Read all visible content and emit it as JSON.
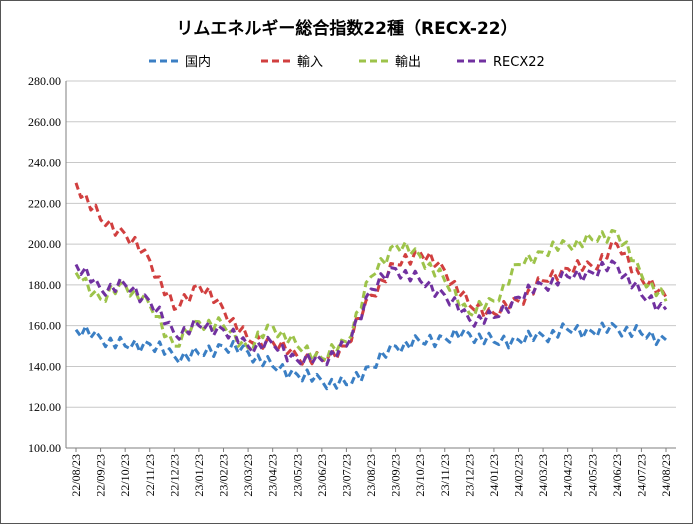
{
  "chart_data": {
    "type": "line",
    "title": "リムエネルギー総合指数22種（RECX-22）",
    "xlabel": "",
    "ylabel": "",
    "ylim": [
      100,
      280
    ],
    "yticks": [
      "100.00",
      "120.00",
      "140.00",
      "160.00",
      "180.00",
      "200.00",
      "220.00",
      "240.00",
      "260.00",
      "280.00"
    ],
    "x": [
      "22/08/23",
      "22/09/23",
      "22/10/23",
      "22/11/23",
      "22/12/23",
      "23/01/23",
      "23/02/23",
      "23/03/23",
      "23/04/23",
      "23/05/23",
      "23/06/23",
      "23/07/23",
      "23/08/23",
      "23/09/23",
      "23/10/23",
      "23/11/23",
      "23/12/23",
      "24/01/23",
      "24/02/23",
      "24/03/23",
      "24/04/23",
      "24/05/23",
      "24/06/23",
      "24/07/23",
      "24/08/23"
    ],
    "grid": true,
    "legend_position": "top",
    "series": [
      {
        "name": "国内",
        "color": "#3b7fc4",
        "values": [
          158,
          154,
          150,
          151,
          145,
          146,
          150,
          147,
          140,
          136,
          133,
          131,
          140,
          150,
          152,
          154,
          156,
          152,
          153,
          155,
          158,
          157,
          159,
          156,
          153
        ]
      },
      {
        "name": "輸入",
        "color": "#d13f3f",
        "values": [
          230,
          212,
          205,
          192,
          168,
          180,
          168,
          153,
          152,
          145,
          143,
          150,
          175,
          190,
          196,
          187,
          170,
          166,
          172,
          182,
          188,
          189,
          200,
          183,
          174
        ]
      },
      {
        "name": "輸出",
        "color": "#9dc34a",
        "values": [
          186,
          173,
          180,
          170,
          150,
          162,
          160,
          149,
          160,
          150,
          144,
          152,
          184,
          200,
          194,
          182,
          166,
          172,
          190,
          196,
          200,
          202,
          206,
          185,
          172
        ]
      },
      {
        "name": "RECX22",
        "color": "#7131a0",
        "values": [
          190,
          178,
          180,
          172,
          156,
          160,
          158,
          150,
          151,
          143,
          143,
          150,
          178,
          188,
          182,
          175,
          163,
          164,
          174,
          180,
          184,
          186,
          190,
          175,
          168
        ]
      }
    ]
  }
}
